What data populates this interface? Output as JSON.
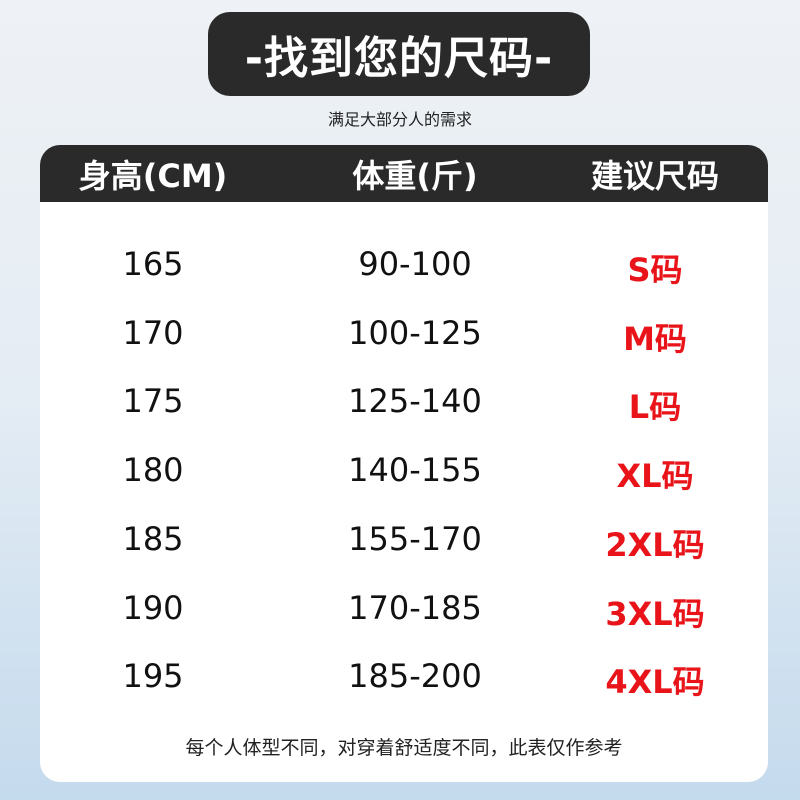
{
  "title": "-找到您的尺码-",
  "subtitle": "满足大部分人的需求",
  "table": {
    "headers": [
      "身高(CM)",
      "体重(斤)",
      "建议尺码"
    ],
    "rows": [
      [
        "165",
        "90-100",
        "S码"
      ],
      [
        "170",
        "100-125",
        "M码"
      ],
      [
        "175",
        "125-140",
        "L码"
      ],
      [
        "180",
        "140-155",
        "XL码"
      ],
      [
        "185",
        "155-170",
        "2XL码"
      ],
      [
        "190",
        "170-185",
        "3XL码"
      ],
      [
        "195",
        "185-200",
        "4XL码"
      ]
    ]
  },
  "note": "每个人体型不同，对穿着舒适度不同，此表仅作参考",
  "colors": {
    "header_bg": "#2a2a2a",
    "size_text": "#e8141a"
  }
}
